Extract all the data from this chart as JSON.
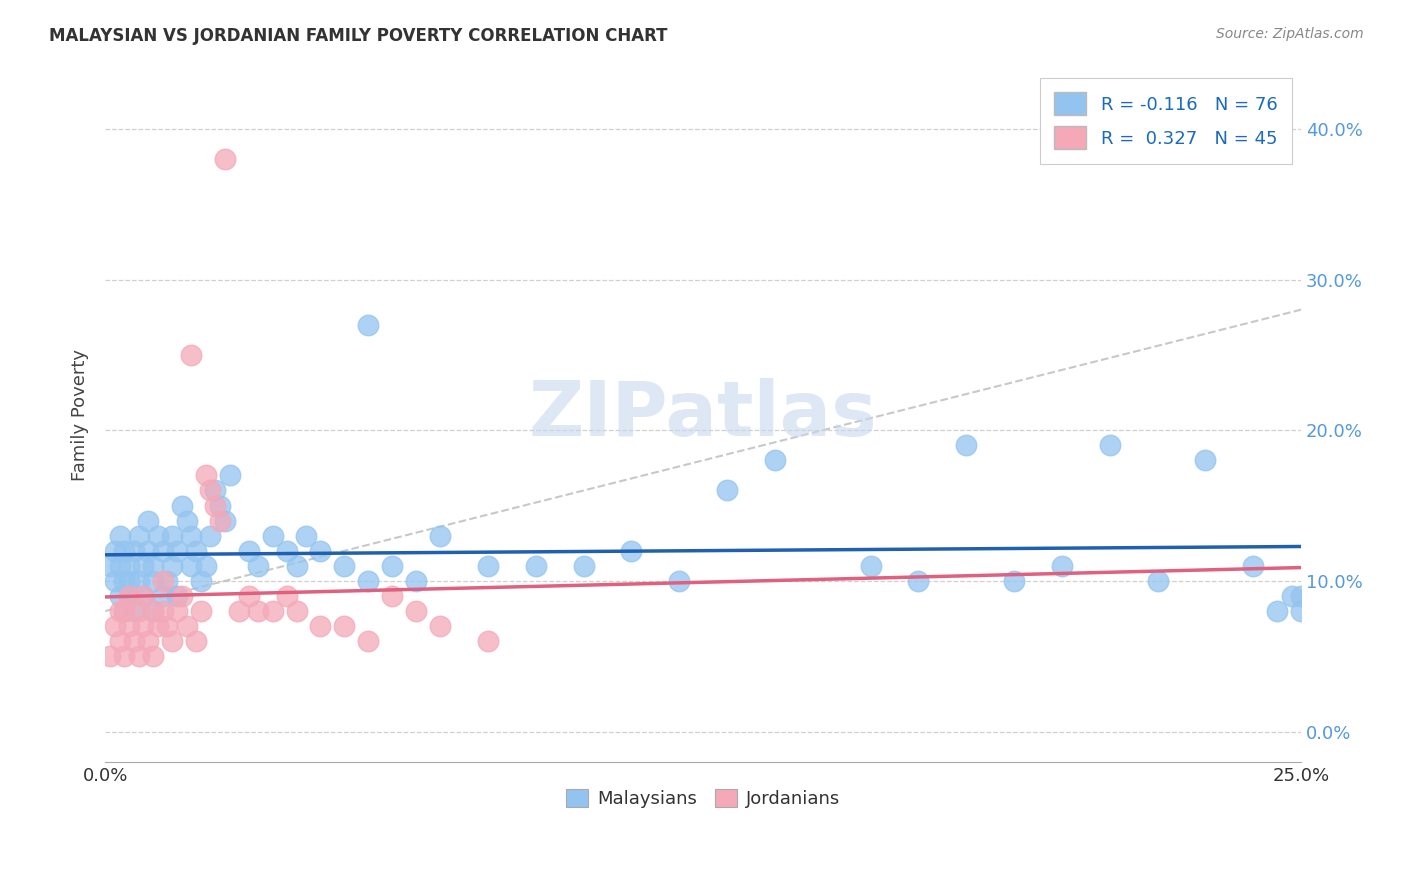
{
  "title": "MALAYSIAN VS JORDANIAN FAMILY POVERTY CORRELATION CHART",
  "source": "Source: ZipAtlas.com",
  "xmin": 0,
  "xmax": 25,
  "ymin": -2,
  "ymax": 44,
  "watermark": "ZIPatlas",
  "malaysian_color": "#93c4ef",
  "jordanian_color": "#f4a8b8",
  "malaysian_line_color": "#2060b0",
  "jordanian_line_color": "#e06080",
  "ylabel": "Family Poverty",
  "legend_malaysians": "Malaysians",
  "legend_jordanians": "Jordanians",
  "grid_color": "#d0d0d0",
  "background_color": "#ffffff",
  "right_axis_color": "#5599dd",
  "ytick_vals": [
    0,
    10,
    20,
    30,
    40
  ],
  "ytick_labels": [
    "0.0%",
    "10.0%",
    "20.0%",
    "30.0%",
    "40.0%"
  ],
  "xtick_edge_vals": [
    0,
    25
  ],
  "xtick_edge_labels": [
    "0.0%",
    "25.0%"
  ],
  "xtick_minor_vals": [
    5,
    10,
    15,
    20
  ],
  "legend_text_1": "R = -0.116   N = 76",
  "legend_text_2": "R =  0.327   N = 45",
  "mal_x": [
    0.1,
    0.2,
    0.2,
    0.3,
    0.3,
    0.3,
    0.4,
    0.4,
    0.4,
    0.5,
    0.5,
    0.5,
    0.6,
    0.6,
    0.7,
    0.7,
    0.8,
    0.8,
    0.9,
    0.9,
    1.0,
    1.0,
    1.0,
    1.1,
    1.2,
    1.2,
    1.3,
    1.4,
    1.4,
    1.5,
    1.5,
    1.6,
    1.7,
    1.8,
    1.8,
    1.9,
    2.0,
    2.1,
    2.2,
    2.3,
    2.4,
    2.5,
    2.6,
    3.0,
    3.2,
    3.5,
    3.8,
    4.0,
    4.2,
    4.5,
    5.0,
    5.5,
    5.5,
    6.0,
    6.5,
    7.0,
    8.0,
    9.0,
    10.0,
    11.0,
    12.0,
    13.0,
    14.0,
    16.0,
    17.0,
    18.0,
    19.0,
    20.0,
    21.0,
    22.0,
    23.0,
    24.0,
    24.5,
    24.8,
    25.0,
    25.0
  ],
  "mal_y": [
    11,
    10,
    12,
    9,
    11,
    13,
    8,
    10,
    12,
    9,
    11,
    10,
    8,
    12,
    10,
    13,
    9,
    11,
    12,
    14,
    8,
    10,
    11,
    13,
    9,
    12,
    10,
    11,
    13,
    9,
    12,
    15,
    14,
    11,
    13,
    12,
    10,
    11,
    13,
    16,
    15,
    14,
    17,
    12,
    11,
    13,
    12,
    11,
    13,
    12,
    11,
    27,
    10,
    11,
    10,
    13,
    11,
    11,
    11,
    12,
    10,
    16,
    18,
    11,
    10,
    19,
    10,
    11,
    19,
    10,
    18,
    11,
    8,
    9,
    9,
    8
  ],
  "jor_x": [
    0.1,
    0.2,
    0.3,
    0.3,
    0.4,
    0.4,
    0.5,
    0.5,
    0.6,
    0.7,
    0.7,
    0.8,
    0.8,
    0.9,
    1.0,
    1.0,
    1.1,
    1.2,
    1.2,
    1.3,
    1.4,
    1.5,
    1.6,
    1.7,
    1.8,
    1.9,
    2.0,
    2.1,
    2.2,
    2.3,
    2.4,
    2.5,
    2.8,
    3.0,
    3.2,
    3.5,
    3.8,
    4.0,
    4.5,
    5.0,
    5.5,
    6.0,
    6.5,
    7.0,
    8.0
  ],
  "jor_y": [
    5,
    7,
    6,
    8,
    5,
    8,
    7,
    9,
    6,
    5,
    8,
    7,
    9,
    6,
    8,
    5,
    7,
    8,
    10,
    7,
    6,
    8,
    9,
    7,
    25,
    6,
    8,
    17,
    16,
    15,
    14,
    38,
    8,
    9,
    8,
    8,
    9,
    8,
    7,
    7,
    6,
    9,
    8,
    7,
    6
  ]
}
